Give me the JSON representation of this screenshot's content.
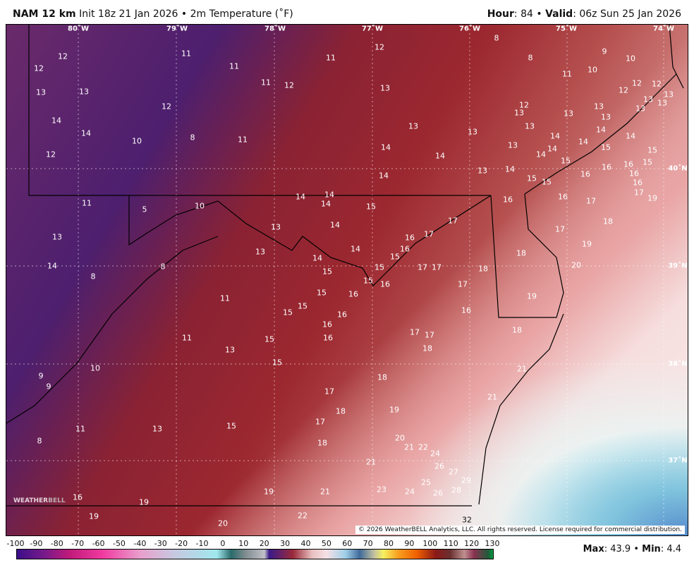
{
  "header": {
    "model": "NAM 12 km",
    "init": "Init 18z 21 Jan 2026",
    "sep": "•",
    "field": "2m Temperature (˚F)",
    "hour_label": "Hour",
    "hour": ": 84",
    "valid_label": "Valid",
    "valid": ": 06z Sun 25 Jan 2026"
  },
  "map": {
    "longitudes": [
      "80˚W",
      "79˚W",
      "78˚W",
      "77˚W",
      "76˚W",
      "75˚W",
      "74˚W"
    ],
    "latitudes": [
      "40˚N",
      "39˚N",
      "38˚N",
      "37˚N"
    ],
    "temperatures": [
      12,
      12,
      13,
      13,
      14,
      14,
      12,
      10,
      11,
      11,
      11,
      12,
      11,
      12,
      13,
      12,
      8,
      11,
      8,
      8,
      9,
      10,
      11,
      10,
      12,
      12,
      12,
      13,
      13,
      13,
      13,
      12,
      13,
      13,
      13,
      13,
      13,
      13,
      13,
      14,
      14,
      14,
      14,
      13,
      14,
      14,
      14,
      14,
      15,
      15,
      15,
      15,
      14,
      13,
      14,
      16,
      16,
      16,
      16,
      15,
      15,
      16,
      17,
      19,
      11,
      5,
      10,
      14,
      14,
      14,
      15,
      16,
      16,
      17,
      17,
      14,
      13,
      13,
      16,
      17,
      16,
      14,
      15,
      13,
      14,
      8,
      14,
      15,
      17,
      17,
      18,
      17,
      18,
      18,
      19,
      20,
      15,
      15,
      16,
      17,
      8,
      15,
      16,
      19,
      11,
      15,
      15,
      16,
      16,
      16,
      16,
      17,
      17,
      18,
      11,
      15,
      18,
      13,
      10,
      15,
      21,
      9,
      9,
      18,
      17,
      21,
      18,
      19,
      17,
      11,
      13,
      15,
      8,
      18,
      20,
      22,
      21,
      24,
      21,
      26,
      27,
      29,
      25,
      23,
      24,
      26,
      28,
      21,
      19,
      16,
      19,
      19,
      22,
      32,
      20
    ],
    "copyright": "© 2026 WeatherBELL Analytics, LLC. All rights reserved. License required for commercial distribution.",
    "logo": "WEATHERBELL"
  },
  "colorbar": {
    "ticks": [
      "-100",
      "-90",
      "-80",
      "-70",
      "-60",
      "-50",
      "-40",
      "-30",
      "-20",
      "-10",
      "0",
      "10",
      "20",
      "30",
      "40",
      "50",
      "60",
      "70",
      "80",
      "90",
      "100",
      "110",
      "120",
      "130"
    ]
  },
  "stats": {
    "max_label": "Max",
    "max": ": 43.9",
    "sep": "•",
    "min_label": "Min",
    "min": ": 4.4"
  }
}
